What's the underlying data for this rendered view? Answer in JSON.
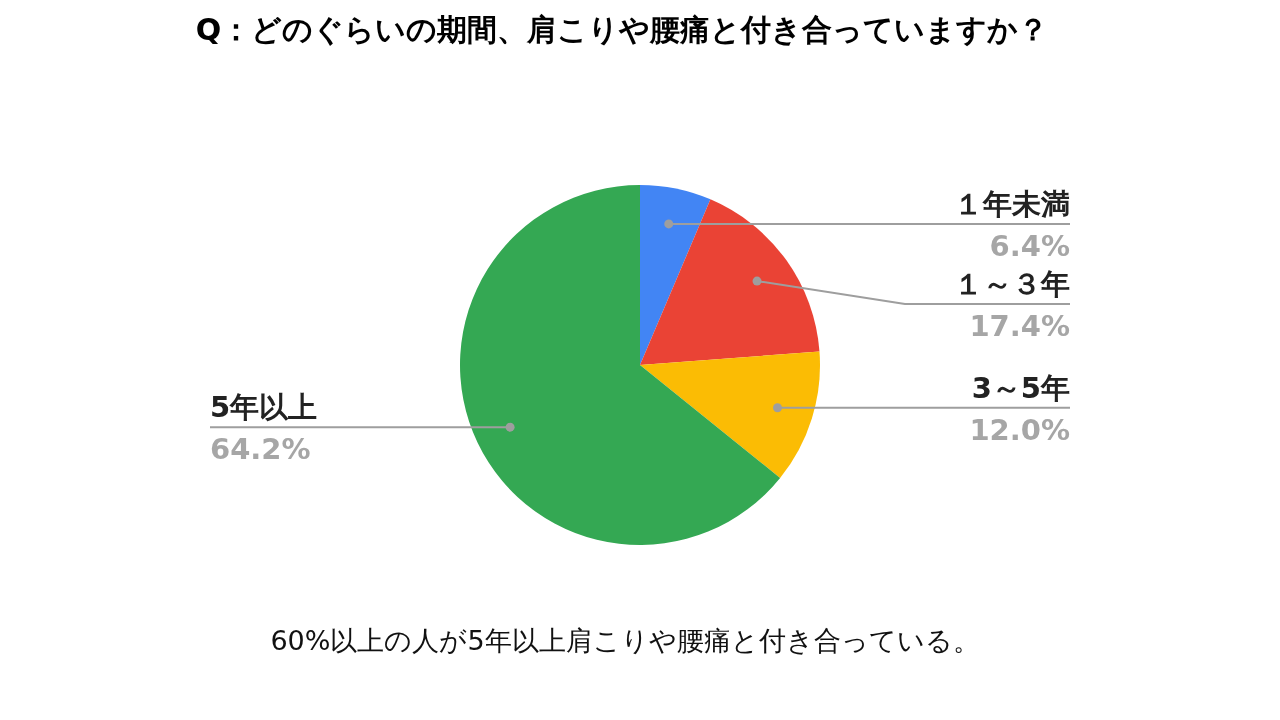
{
  "chart_data": {
    "type": "pie",
    "title": "Q：どのぐらいの期間、肩こりや腰痛と付き合っていますか？",
    "categories": [
      "１年未満",
      "１～３年",
      "3～5年",
      "5年以上"
    ],
    "values": [
      6.4,
      17.4,
      12.0,
      64.2
    ],
    "colors": [
      "#4285f4",
      "#ea4335",
      "#fbbc04",
      "#34a853"
    ],
    "value_labels": [
      "6.4%",
      "17.4%",
      "12.0%",
      "64.2%"
    ],
    "annotations": [
      "60%以上の人が5年以上肩こりや腰痛と付き合っている。"
    ]
  }
}
